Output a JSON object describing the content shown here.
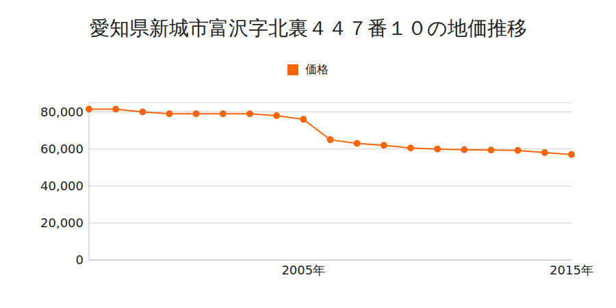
{
  "chart_data": {
    "type": "line",
    "title": "愛知県新城市富沢字北裏４４７番１０の地価推移",
    "categories": [
      null,
      null,
      null,
      null,
      null,
      null,
      null,
      null,
      "2005年",
      null,
      null,
      null,
      null,
      null,
      null,
      null,
      null,
      null,
      "2015年"
    ],
    "series": [
      {
        "name": "価格",
        "color": "#f7650d",
        "marker": "circle",
        "values": [
          81500,
          81500,
          80000,
          79000,
          79000,
          79000,
          79000,
          78000,
          76000,
          65000,
          63000,
          62000,
          60500,
          60000,
          59600,
          59400,
          59200,
          58000,
          57000
        ]
      }
    ],
    "ylim": [
      0,
      85000
    ],
    "yticks": [
      0,
      {
        "value": 20000,
        "label": "20,000"
      },
      {
        "value": 40000,
        "label": "40,000"
      },
      {
        "value": 60000,
        "label": "60,000"
      },
      {
        "value": 80000,
        "label": "80,000"
      }
    ],
    "grid": true
  }
}
